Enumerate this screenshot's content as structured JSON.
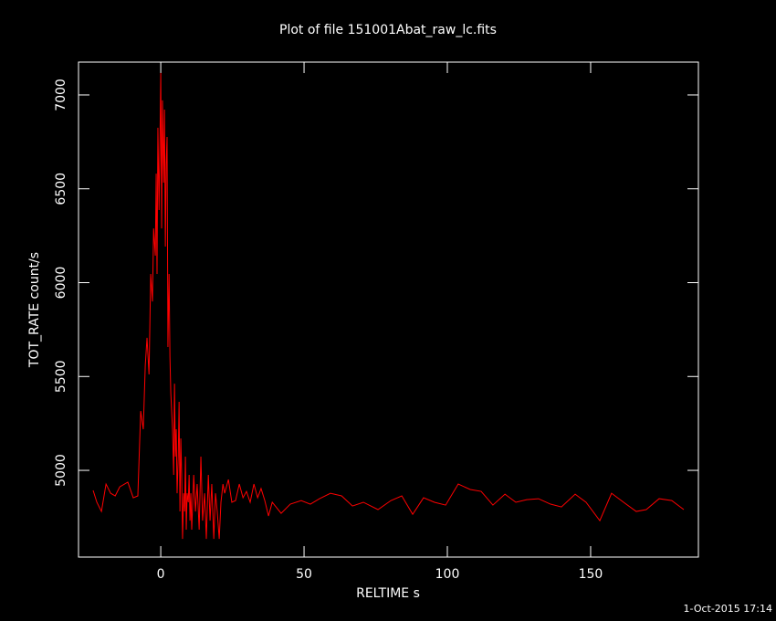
{
  "chart_data": {
    "type": "line",
    "title": "Plot of file 151001Abat_raw_lc.fits",
    "x_label": "RELTIME  s",
    "y_label": "TOT_RATE  count/s",
    "footer": "1-Oct-2015 17:14",
    "xlim": [
      -28.7,
      187.6
    ],
    "ylim": [
      4538,
      7175
    ],
    "xticks": [
      0,
      50,
      100,
      150
    ],
    "yticks": [
      5000,
      5500,
      6000,
      6500,
      7000
    ],
    "series": [
      {
        "color": "#ff0000",
        "x": [
          -23.6,
          -22.3,
          -20.7,
          -19.1,
          -17.5,
          -15.9,
          -14.3,
          -11.5,
          -9.6,
          -8.0,
          -7.0,
          -6.1,
          -5.4,
          -4.8,
          -4.1,
          -3.5,
          -2.9,
          -2.5,
          -1.9,
          -1.6,
          -1.3,
          -1.0,
          -0.6,
          -0.3,
          0.0,
          0.3,
          0.6,
          1.0,
          1.3,
          1.6,
          1.9,
          2.2,
          2.5,
          2.9,
          3.2,
          3.5,
          3.8,
          4.1,
          4.5,
          4.8,
          5.1,
          5.4,
          5.7,
          6.1,
          6.4,
          6.7,
          7.0,
          7.3,
          7.6,
          8.0,
          8.3,
          8.6,
          8.9,
          9.2,
          9.6,
          9.9,
          10.2,
          10.5,
          10.8,
          11.5,
          12.1,
          12.7,
          13.4,
          14.0,
          14.6,
          15.3,
          15.9,
          16.6,
          17.2,
          17.8,
          18.5,
          19.1,
          19.7,
          20.4,
          21.0,
          21.7,
          22.3,
          23.6,
          24.8,
          26.1,
          27.4,
          28.7,
          29.9,
          31.2,
          32.5,
          33.8,
          35.0,
          36.3,
          37.6,
          38.9,
          42.0,
          45.2,
          49.0,
          52.2,
          55.4,
          59.2,
          63.1,
          66.9,
          70.7,
          75.8,
          80.3,
          84.1,
          87.9,
          91.7,
          95.5,
          99.4,
          103.8,
          108.0,
          111.8,
          115.9,
          120.1,
          123.9,
          127.7,
          131.8,
          136.0,
          139.8,
          144.6,
          148.4,
          153.2,
          157.3,
          161.5,
          165.9,
          169.4,
          173.9,
          178.3,
          182.5
        ],
        "values": [
          4893,
          4830,
          4781,
          4927,
          4878,
          4864,
          4912,
          4937,
          4854,
          4864,
          5316,
          5219,
          5560,
          5706,
          5511,
          6046,
          5900,
          6289,
          6144,
          6581,
          6046,
          6825,
          6387,
          6727,
          7117,
          6289,
          6971,
          6533,
          6922,
          6192,
          6630,
          6776,
          5657,
          6046,
          5608,
          5414,
          5316,
          5219,
          4976,
          5462,
          5073,
          5219,
          4878,
          5073,
          5365,
          4781,
          5170,
          4976,
          4635,
          4878,
          4781,
          5073,
          4684,
          4878,
          4830,
          4976,
          4732,
          4878,
          4684,
          4976,
          4781,
          4927,
          4684,
          5073,
          4732,
          4878,
          4635,
          4976,
          4732,
          4927,
          4635,
          4878,
          4781,
          4635,
          4830,
          4927,
          4878,
          4951,
          4830,
          4839,
          4927,
          4854,
          4888,
          4830,
          4927,
          4854,
          4903,
          4839,
          4757,
          4830,
          4771,
          4820,
          4839,
          4820,
          4849,
          4878,
          4864,
          4810,
          4830,
          4791,
          4839,
          4864,
          4766,
          4854,
          4830,
          4815,
          4927,
          4898,
          4888,
          4815,
          4873,
          4830,
          4844,
          4849,
          4820,
          4805,
          4873,
          4830,
          4732,
          4878,
          4830,
          4781,
          4791,
          4849,
          4839,
          4791
        ]
      }
    ]
  }
}
